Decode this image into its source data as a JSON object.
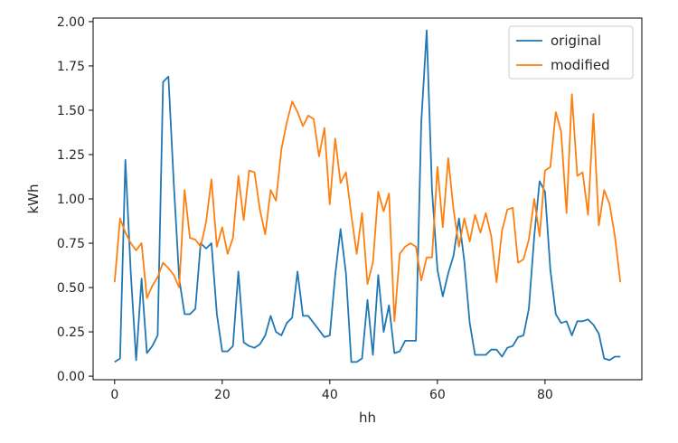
{
  "chart_data": {
    "type": "line",
    "title": "",
    "xlabel": "hh",
    "ylabel": "kWh",
    "xlim": [
      -4,
      98
    ],
    "ylim": [
      -0.02,
      2.02
    ],
    "xticks": [
      0,
      20,
      40,
      60,
      80
    ],
    "xtick_labels": [
      "0",
      "20",
      "40",
      "60",
      "80"
    ],
    "yticks": [
      0.0,
      0.25,
      0.5,
      0.75,
      1.0,
      1.25,
      1.5,
      1.75,
      2.0
    ],
    "ytick_labels": [
      "0.00",
      "0.25",
      "0.50",
      "0.75",
      "1.00",
      "1.25",
      "1.50",
      "1.75",
      "2.00"
    ],
    "grid": false,
    "legend": "top-right",
    "series": [
      {
        "name": "original",
        "color": "#1f77b4",
        "x": [
          0,
          1,
          2,
          3,
          4,
          5,
          6,
          7,
          8,
          9,
          10,
          11,
          12,
          13,
          14,
          15,
          16,
          17,
          18,
          19,
          20,
          21,
          22,
          23,
          24,
          25,
          26,
          27,
          28,
          29,
          30,
          31,
          32,
          33,
          34,
          35,
          36,
          37,
          38,
          39,
          40,
          41,
          42,
          43,
          44,
          45,
          46,
          47,
          48,
          49,
          50,
          51,
          52,
          53,
          54,
          55,
          56,
          57,
          58,
          59,
          60,
          61,
          62,
          63,
          64,
          65,
          66,
          67,
          68,
          69,
          70,
          71,
          72,
          73,
          74,
          75,
          76,
          77,
          78,
          79,
          80,
          81,
          82,
          83,
          84,
          85,
          86,
          87,
          88,
          89,
          90,
          91,
          92,
          93,
          94
        ],
        "values": [
          0.08,
          0.1,
          1.22,
          0.58,
          0.09,
          0.55,
          0.13,
          0.17,
          0.23,
          1.66,
          1.69,
          1.08,
          0.55,
          0.35,
          0.35,
          0.38,
          0.75,
          0.72,
          0.75,
          0.35,
          0.14,
          0.14,
          0.17,
          0.59,
          0.19,
          0.17,
          0.16,
          0.18,
          0.23,
          0.34,
          0.25,
          0.23,
          0.3,
          0.33,
          0.59,
          0.34,
          0.34,
          0.3,
          0.26,
          0.22,
          0.23,
          0.57,
          0.83,
          0.58,
          0.08,
          0.08,
          0.1,
          0.43,
          0.12,
          0.57,
          0.25,
          0.4,
          0.13,
          0.14,
          0.2,
          0.2,
          0.2,
          1.43,
          1.95,
          1.05,
          0.6,
          0.45,
          0.58,
          0.68,
          0.89,
          0.65,
          0.3,
          0.12,
          0.12,
          0.12,
          0.15,
          0.15,
          0.11,
          0.16,
          0.17,
          0.22,
          0.23,
          0.38,
          0.79,
          1.1,
          1.04,
          0.6,
          0.35,
          0.3,
          0.31,
          0.23,
          0.31,
          0.31,
          0.32,
          0.29,
          0.24,
          0.1,
          0.09,
          0.11,
          0.11
        ]
      },
      {
        "name": "modified",
        "color": "#ff7f0e",
        "x": [
          0,
          1,
          2,
          3,
          4,
          5,
          6,
          7,
          8,
          9,
          10,
          11,
          12,
          13,
          14,
          15,
          16,
          17,
          18,
          19,
          20,
          21,
          22,
          23,
          24,
          25,
          26,
          27,
          28,
          29,
          30,
          31,
          32,
          33,
          34,
          35,
          36,
          37,
          38,
          39,
          40,
          41,
          42,
          43,
          44,
          45,
          46,
          47,
          48,
          49,
          50,
          51,
          52,
          53,
          54,
          55,
          56,
          57,
          58,
          59,
          60,
          61,
          62,
          63,
          64,
          65,
          66,
          67,
          68,
          69,
          70,
          71,
          72,
          73,
          74,
          75,
          76,
          77,
          78,
          79,
          80,
          81,
          82,
          83,
          84,
          85,
          86,
          87,
          88,
          89,
          90,
          91,
          92,
          93,
          94
        ],
        "values": [
          0.53,
          0.89,
          0.81,
          0.75,
          0.71,
          0.75,
          0.44,
          0.51,
          0.56,
          0.64,
          0.61,
          0.57,
          0.5,
          1.05,
          0.78,
          0.77,
          0.73,
          0.87,
          1.11,
          0.73,
          0.84,
          0.69,
          0.78,
          1.13,
          0.88,
          1.16,
          1.15,
          0.94,
          0.8,
          1.05,
          0.99,
          1.28,
          1.43,
          1.55,
          1.49,
          1.41,
          1.47,
          1.45,
          1.24,
          1.4,
          0.97,
          1.34,
          1.09,
          1.15,
          0.91,
          0.69,
          0.92,
          0.52,
          0.64,
          1.04,
          0.93,
          1.03,
          0.31,
          0.69,
          0.73,
          0.75,
          0.73,
          0.54,
          0.67,
          0.67,
          1.18,
          0.84,
          1.23,
          0.94,
          0.73,
          0.89,
          0.76,
          0.91,
          0.81,
          0.92,
          0.79,
          0.53,
          0.82,
          0.94,
          0.95,
          0.64,
          0.66,
          0.77,
          1.0,
          0.79,
          1.16,
          1.18,
          1.49,
          1.38,
          0.92,
          1.59,
          1.13,
          1.15,
          0.91,
          1.48,
          0.85,
          1.05,
          0.97,
          0.79,
          0.53
        ]
      }
    ]
  }
}
